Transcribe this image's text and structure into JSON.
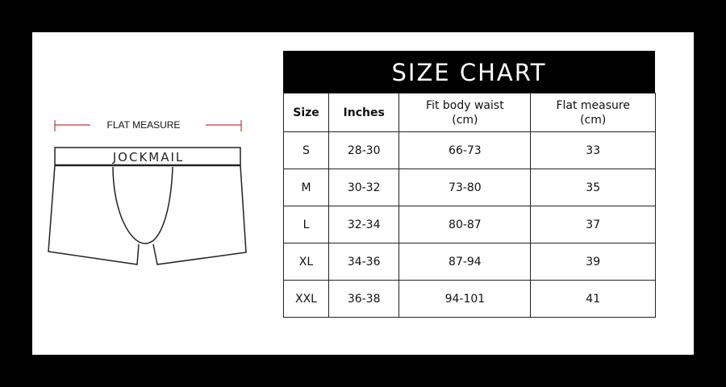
{
  "title": "SIZE CHART",
  "flat_label": "FLAT MEASURE",
  "brand": "JOCKMAIL",
  "headers": [
    {
      "l1": "Size",
      "l2": ""
    },
    {
      "l1": "Inches",
      "l2": ""
    },
    {
      "l1": "Fit body waist",
      "l2": "(cm)"
    },
    {
      "l1": "Flat measure",
      "l2": "(cm)"
    }
  ],
  "rows": [
    [
      "S",
      "28-30",
      "66-73",
      "33"
    ],
    [
      "M",
      "30-32",
      "73-80",
      "35"
    ],
    [
      "L",
      "32-34",
      "80-87",
      "37"
    ],
    [
      "XL",
      "34-36",
      "87-94",
      "39"
    ],
    [
      "XXL",
      "36-38",
      "94-101",
      "41"
    ]
  ],
  "colors": {
    "measure_line": "#c0392b",
    "background": "#000000",
    "panel": "#ffffff"
  }
}
